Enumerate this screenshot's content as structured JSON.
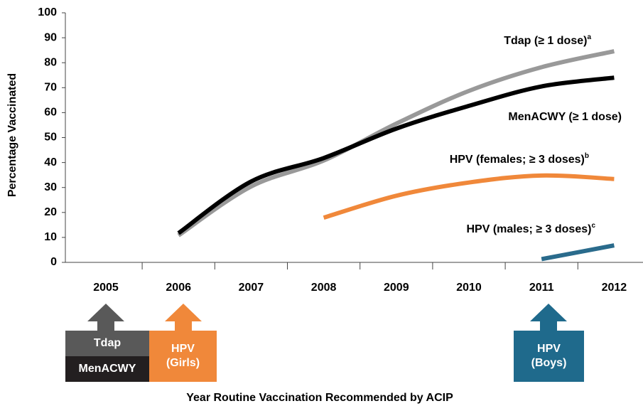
{
  "chart_data": {
    "type": "line",
    "y_label": "Percentage Vaccinated",
    "x_label": "Year Routine Vaccination Recommended by ACIP",
    "categories": [
      "2005",
      "2006",
      "2007",
      "2008",
      "2009",
      "2010",
      "2011",
      "2012"
    ],
    "series": [
      {
        "name": "Tdap (≥ 1 dose)",
        "footnote": "a",
        "color": "#999999",
        "values": [
          null,
          10.8,
          30.4,
          40.8,
          55.6,
          68.7,
          78.2,
          84.6
        ]
      },
      {
        "name": "MenACWY (≥ 1 dose)",
        "color": "#000000",
        "values": [
          null,
          11.7,
          32.4,
          41.8,
          53.6,
          62.7,
          70.5,
          74.0
        ]
      },
      {
        "name": "HPV (females; ≥ 3 doses)",
        "footnote": "b",
        "color": "#f0883a",
        "values": [
          null,
          null,
          null,
          17.9,
          26.7,
          32.0,
          34.8,
          33.4
        ]
      },
      {
        "name": "HPV (males; ≥ 3 doses)",
        "footnote": "c",
        "color": "#2a6b8c",
        "values": [
          null,
          null,
          null,
          null,
          null,
          null,
          1.3,
          6.8
        ]
      }
    ],
    "ylim": [
      0,
      100
    ],
    "yticks": [
      0,
      10,
      20,
      30,
      40,
      50,
      60,
      70,
      80,
      90,
      100
    ],
    "annotations": [
      {
        "lines": [
          "Tdap"
        ],
        "color": "#595959"
      },
      {
        "lines": [
          "MenACWY"
        ],
        "color": "#231f20"
      },
      {
        "lines": [
          "HPV",
          "(Girls)"
        ],
        "color": "#f0883a"
      },
      {
        "lines": [
          "HPV",
          "(Boys)"
        ],
        "color": "#1f6a8c"
      }
    ]
  }
}
